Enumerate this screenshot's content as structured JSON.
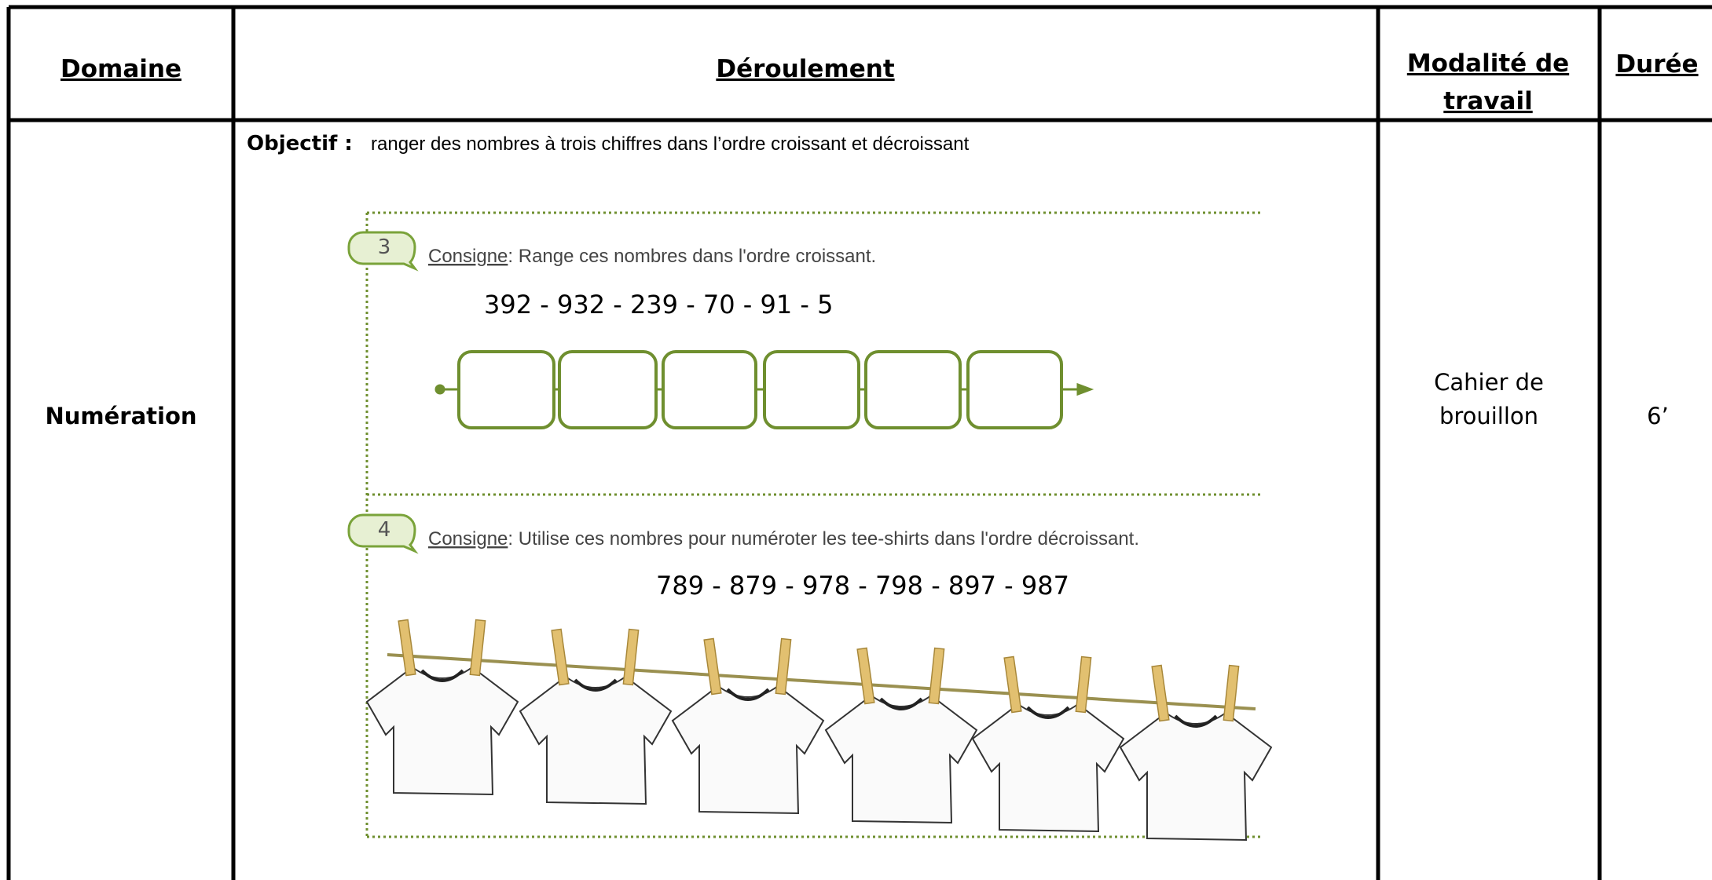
{
  "header": {
    "domain": "Domaine",
    "procedure": "Déroulement",
    "modality": [
      "Modalité de",
      "travail"
    ],
    "duration": "Durée"
  },
  "row": {
    "domain": "Numération",
    "objective_label": "Objectif :",
    "objective": "ranger des nombres à trois chiffres dans l’ordre croissant et décroissant",
    "modality": [
      "Cahier de",
      "brouillon"
    ],
    "duration": "6’"
  },
  "exercises": [
    {
      "number": "3",
      "label": "Consigne",
      "instruction": ": Range ces nombres dans l'ordre croissant.",
      "numbers": "392 - 932 - 239 - 70 - 91 - 5"
    },
    {
      "number": "4",
      "label": "Consigne",
      "instruction": ": Utilise ces nombres pour numéroter les tee-shirts dans l'ordre décroissant.",
      "numbers": "789 - 879 - 978 - 798 - 897 - 987"
    }
  ]
}
